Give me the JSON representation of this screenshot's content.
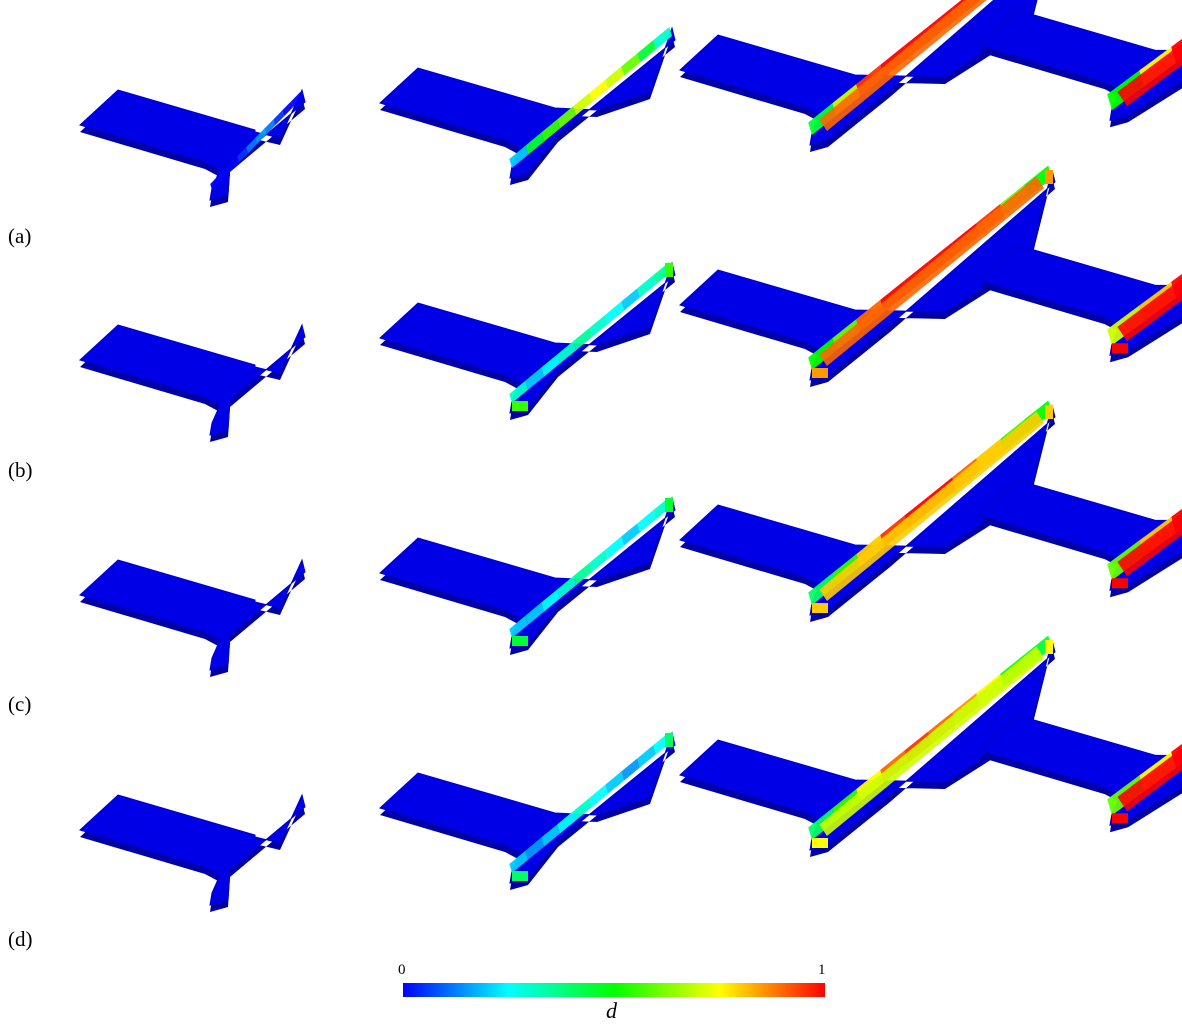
{
  "rows": [
    {
      "label": "(a)",
      "panels": [
        {
          "damage": [
            0,
            0,
            0,
            0.05,
            0.12,
            0.15,
            0.12,
            0.05,
            0,
            0
          ],
          "core": 0,
          "rim": 0
        },
        {
          "damage": [
            0.2,
            0.45,
            0.55,
            0.6,
            0.7,
            0.75,
            0.7,
            0.6,
            0.45,
            0.3
          ],
          "core": 0,
          "rim": 0
        },
        {
          "damage": [
            0.45,
            0.7,
            0.95,
            1,
            1,
            1,
            1,
            0.9,
            0.6,
            0.4
          ],
          "core": 0.9,
          "rim": 0
        },
        {
          "damage": [
            0.5,
            0.75,
            1,
            1,
            1,
            1,
            1,
            1,
            0.8,
            0.5
          ],
          "core": 1,
          "rim": 0
        }
      ]
    },
    {
      "label": "(b)",
      "panels": [
        {
          "damage": [
            0,
            0,
            0,
            0,
            0,
            0,
            0,
            0,
            0,
            0
          ],
          "core": 0,
          "rim": 0
        },
        {
          "damage": [
            0.3,
            0.2,
            0.25,
            0.3,
            0.35,
            0.3,
            0.25,
            0.2,
            0.3,
            0.35
          ],
          "core": 0,
          "rim": 0.55
        },
        {
          "damage": [
            0.5,
            0.6,
            0.9,
            1,
            1,
            1,
            1,
            0.95,
            0.6,
            0.5
          ],
          "core": 0.9,
          "rim": 0.85
        },
        {
          "damage": [
            0.7,
            0.8,
            1,
            1,
            1,
            1,
            1,
            1,
            1,
            0.8
          ],
          "core": 1,
          "rim": 1
        }
      ]
    },
    {
      "label": "(c)",
      "panels": [
        {
          "damage": [
            0,
            0,
            0,
            0,
            0,
            0,
            0,
            0,
            0,
            0
          ],
          "core": 0,
          "rim": 0
        },
        {
          "damage": [
            0.2,
            0.2,
            0.25,
            0.3,
            0.35,
            0.3,
            0.25,
            0.2,
            0.25,
            0.3
          ],
          "core": 0,
          "rim": 0.45
        },
        {
          "damage": [
            0.4,
            0.55,
            0.8,
            0.95,
            1,
            1,
            0.9,
            0.8,
            0.55,
            0.5
          ],
          "core": 0.8,
          "rim": 0.8
        },
        {
          "damage": [
            0.6,
            0.8,
            1,
            1,
            1,
            1,
            1,
            1,
            0.95,
            0.8
          ],
          "core": 1,
          "rim": 1
        }
      ]
    },
    {
      "label": "(d)",
      "panels": [
        {
          "damage": [
            0,
            0,
            0,
            0,
            0,
            0,
            0,
            0,
            0,
            0
          ],
          "core": 0,
          "rim": 0
        },
        {
          "damage": [
            0.2,
            0.15,
            0.2,
            0.25,
            0.3,
            0.25,
            0.2,
            0.15,
            0.2,
            0.25
          ],
          "core": 0,
          "rim": 0.4
        },
        {
          "damage": [
            0.4,
            0.55,
            0.75,
            0.9,
            0.95,
            0.9,
            0.85,
            0.75,
            0.5,
            0.45
          ],
          "core": 0.7,
          "rim": 0.75
        },
        {
          "damage": [
            0.6,
            0.75,
            1,
            1,
            1,
            1,
            1,
            1,
            0.9,
            0.75
          ],
          "core": 1,
          "rim": 1
        }
      ]
    }
  ],
  "colorbar": {
    "min_label": "0",
    "max_label": "1",
    "variable": "d",
    "colormap": [
      "#0000ff",
      "#00ffff",
      "#00ff00",
      "#ffff00",
      "#ff0000"
    ]
  }
}
